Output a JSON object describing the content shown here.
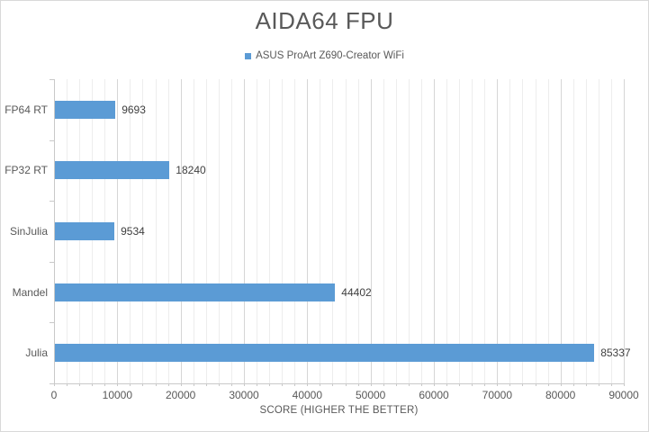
{
  "chart_data": {
    "type": "bar",
    "orientation": "horizontal",
    "title": "AIDA64 FPU",
    "categories": [
      "FP64 RT",
      "FP32 RT",
      "SinJulia",
      "Mandel",
      "Julia"
    ],
    "series": [
      {
        "name": "ASUS ProArt Z690-Creator WiFi",
        "values": [
          9693,
          18240,
          9534,
          44402,
          85337
        ]
      }
    ],
    "data_labels": [
      "9693",
      "18240",
      "9534",
      "44402",
      "85337"
    ],
    "xlabel": "SCORE (HIGHER THE BETTER)",
    "ylabel": "",
    "xlim": [
      0,
      90000
    ],
    "x_major_tick": 10000,
    "x_minor_tick": 2000,
    "x_tick_labels": [
      "0",
      "10000",
      "20000",
      "30000",
      "40000",
      "50000",
      "60000",
      "70000",
      "80000",
      "90000"
    ],
    "grid": true,
    "legend_position": "top-center"
  },
  "colors": {
    "bar": "#5B9BD5",
    "title_text": "#595959",
    "axis_text": "#595959",
    "data_label_text": "#404040",
    "gridline_major": "#D6D6D6",
    "gridline_minor": "#EDEDED",
    "axis_line": "#C9C9C9",
    "chart_border": "#D9D9D9",
    "background": "#FFFFFF"
  }
}
